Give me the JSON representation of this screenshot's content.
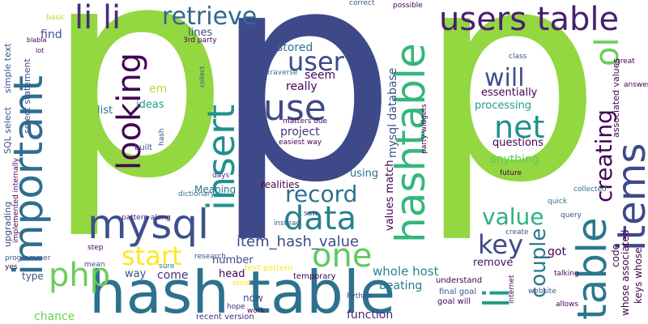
{
  "words": [
    {
      "text": "p",
      "color": "#93d741",
      "weight": "xl"
    },
    {
      "text": "p",
      "color": "#3e4989",
      "weight": "xl"
    },
    {
      "text": "p",
      "color": "#93d741",
      "weight": "xl"
    },
    {
      "text": "hash table",
      "color": "#2c728e",
      "weight": "l"
    },
    {
      "text": "hashtable",
      "color": "#35b779",
      "weight": "l"
    },
    {
      "text": "users table",
      "color": "#481f70",
      "weight": "l"
    },
    {
      "text": "table",
      "color": "#2a788e",
      "weight": "l"
    },
    {
      "text": "items",
      "color": "#3e4989",
      "weight": "l"
    },
    {
      "text": "important",
      "color": "#2e6e8e",
      "weight": "l"
    },
    {
      "text": "li li",
      "color": "#472d7b",
      "weight": "l"
    },
    {
      "text": "retrieve",
      "color": "#31688e",
      "weight": "m"
    },
    {
      "text": "mysql",
      "color": "#3b528b",
      "weight": "m"
    },
    {
      "text": "php",
      "color": "#6ccd5a",
      "weight": "m"
    },
    {
      "text": "insert",
      "color": "#21918c",
      "weight": "m"
    },
    {
      "text": "use",
      "color": "#3e4989",
      "weight": "m"
    },
    {
      "text": "data",
      "color": "#26828e",
      "weight": "m"
    },
    {
      "text": "one",
      "color": "#5ec962",
      "weight": "m"
    },
    {
      "text": "record",
      "color": "#2c728e",
      "weight": "m"
    },
    {
      "text": "user",
      "color": "#3e4989",
      "weight": "m"
    },
    {
      "text": "looking",
      "color": "#440154",
      "weight": "m"
    },
    {
      "text": "start",
      "color": "#fde725",
      "weight": "m"
    },
    {
      "text": "net",
      "color": "#21918c",
      "weight": "m"
    },
    {
      "text": "will",
      "color": "#3b528b",
      "weight": "m"
    },
    {
      "text": "li",
      "color": "#1f9e89",
      "weight": "m"
    },
    {
      "text": "key",
      "color": "#3e4989",
      "weight": "m"
    },
    {
      "text": "value",
      "color": "#2db27d",
      "weight": "m"
    },
    {
      "text": "couple",
      "color": "#2a788e",
      "weight": "m"
    },
    {
      "text": "creating",
      "color": "#440154",
      "weight": "m"
    },
    {
      "text": "ol",
      "color": "#6ccd5a",
      "weight": "m"
    },
    {
      "text": "item_hash_value",
      "color": "#3e4989",
      "weight": "s"
    },
    {
      "text": "whole host",
      "color": "#26828e",
      "weight": "s"
    },
    {
      "text": "function",
      "color": "#482475",
      "weight": "s"
    },
    {
      "text": "stored",
      "color": "#2c728e",
      "weight": "s"
    },
    {
      "text": "seem",
      "color": "#440154",
      "weight": "s"
    },
    {
      "text": "really",
      "color": "#440154",
      "weight": "s"
    },
    {
      "text": "project",
      "color": "#46337e",
      "weight": "s"
    },
    {
      "text": "questions",
      "color": "#440154",
      "weight": "s"
    },
    {
      "text": "anything",
      "color": "#5ec962",
      "weight": "s"
    },
    {
      "text": "processing",
      "color": "#1f9e89",
      "weight": "s"
    },
    {
      "text": "essentially",
      "color": "#440154",
      "weight": "s"
    },
    {
      "text": "ideas",
      "color": "#1f9e89",
      "weight": "s"
    },
    {
      "text": "list",
      "color": "#2c728e",
      "weight": "s"
    },
    {
      "text": "em",
      "color": "#b5de2b",
      "weight": "s"
    },
    {
      "text": "find",
      "color": "#3b528b",
      "weight": "s"
    },
    {
      "text": "type",
      "color": "#3b528b",
      "weight": "s"
    },
    {
      "text": "lines",
      "color": "#3b528b",
      "weight": "s"
    },
    {
      "text": "Meaning",
      "color": "#2c728e",
      "weight": "s"
    },
    {
      "text": "realities",
      "color": "#440154",
      "weight": "s"
    },
    {
      "text": "using",
      "color": "#2c728e",
      "weight": "s"
    },
    {
      "text": "number",
      "color": "#3e4989",
      "weight": "s"
    },
    {
      "text": "beating",
      "color": "#2a788e",
      "weight": "s"
    },
    {
      "text": "remove",
      "color": "#471164",
      "weight": "s"
    },
    {
      "text": "got",
      "color": "#440154",
      "weight": "s"
    },
    {
      "text": "chance",
      "color": "#6ccd5a",
      "weight": "s"
    },
    {
      "text": "way",
      "color": "#3b528b",
      "weight": "s"
    },
    {
      "text": "come",
      "color": "#46337e",
      "weight": "s"
    },
    {
      "text": "head",
      "color": "#440154",
      "weight": "s"
    },
    {
      "text": "now",
      "color": "#3e4989",
      "weight": "s"
    },
    {
      "text": "understand",
      "color": "#440154",
      "weight": "xs"
    },
    {
      "text": "final goal",
      "color": "#3b528b",
      "weight": "xs"
    },
    {
      "text": "goal will",
      "color": "#440154",
      "weight": "xs"
    },
    {
      "text": "text pattern",
      "color": "#fde725",
      "weight": "xs"
    },
    {
      "text": "recent version",
      "color": "#472d7b",
      "weight": "xs"
    },
    {
      "text": "temporary",
      "color": "#440154",
      "weight": "xs"
    },
    {
      "text": "instead",
      "color": "#3b528b",
      "weight": "xs"
    },
    {
      "text": "saw",
      "color": "#3e4989",
      "weight": "xs"
    },
    {
      "text": "matters due",
      "color": "#440154",
      "weight": "xs"
    },
    {
      "text": "easiest way",
      "color": "#440154",
      "weight": "xs"
    },
    {
      "text": "traverse",
      "color": "#2c728e",
      "weight": "xs"
    },
    {
      "text": "built",
      "color": "#3b528b",
      "weight": "xs"
    },
    {
      "text": "days",
      "color": "#46337e",
      "weight": "xs"
    },
    {
      "text": "dictionary",
      "color": "#2c728e",
      "weight": "xs"
    },
    {
      "text": "pattern along",
      "color": "#482475",
      "weight": "xs"
    },
    {
      "text": "step",
      "color": "#440154",
      "weight": "xs"
    },
    {
      "text": "mean",
      "color": "#3b528b",
      "weight": "xs"
    },
    {
      "text": "sure",
      "color": "#2a788e",
      "weight": "xs"
    },
    {
      "text": "research",
      "color": "#3b528b",
      "weight": "xs"
    },
    {
      "text": "store",
      "color": "#fde725",
      "weight": "xs"
    },
    {
      "text": "hope",
      "color": "#482475",
      "weight": "xs"
    },
    {
      "text": "work",
      "color": "#440154",
      "weight": "xs"
    },
    {
      "text": "Python",
      "color": "#3b528b",
      "weight": "xs"
    },
    {
      "text": "programmer",
      "color": "#3b528b",
      "weight": "xs"
    },
    {
      "text": "yes",
      "color": "#440154",
      "weight": "xs"
    },
    {
      "text": "3rd party",
      "color": "#440154",
      "weight": "xs"
    },
    {
      "text": "collected",
      "color": "#2c728e",
      "weight": "xs"
    },
    {
      "text": "quick",
      "color": "#2c728e",
      "weight": "xs"
    },
    {
      "text": "create",
      "color": "#3b528b",
      "weight": "xs"
    },
    {
      "text": "future",
      "color": "#440154",
      "weight": "xs"
    },
    {
      "text": "great",
      "color": "#440154",
      "weight": "xs"
    },
    {
      "text": "answers",
      "color": "#440154",
      "weight": "xs"
    },
    {
      "text": "query",
      "color": "#3b528b",
      "weight": "xs"
    },
    {
      "text": "talking",
      "color": "#440154",
      "weight": "xs"
    },
    {
      "text": "website",
      "color": "#3b528b",
      "weight": "xs"
    },
    {
      "text": "allows",
      "color": "#440154",
      "weight": "xs"
    },
    {
      "text": "class",
      "color": "#3b528b",
      "weight": "xs"
    },
    {
      "text": "correct",
      "color": "#3b528b",
      "weight": "xs"
    },
    {
      "text": "possible",
      "color": "#440154",
      "weight": "xs"
    },
    {
      "text": "basic",
      "color": "#b5de2b",
      "weight": "xs"
    },
    {
      "text": "blabla",
      "color": "#440154",
      "weight": "xs"
    },
    {
      "text": "lot",
      "color": "#440154",
      "weight": "xs"
    },
    {
      "text": "mysql database",
      "color": "#3b528b",
      "weight": "s"
    },
    {
      "text": "values match",
      "color": "#440154",
      "weight": "s"
    },
    {
      "text": "simple text",
      "color": "#3b528b",
      "weight": "s"
    },
    {
      "text": "select statement",
      "color": "#3b528b",
      "weight": "s"
    },
    {
      "text": "SQL select",
      "color": "#3b528b",
      "weight": "s"
    },
    {
      "text": "upgrading",
      "color": "#3e4989",
      "weight": "s"
    },
    {
      "text": "implemented internally",
      "color": "#440154",
      "weight": "xs"
    },
    {
      "text": "party widgets",
      "color": "#440154",
      "weight": "xs"
    },
    {
      "text": "associated values",
      "color": "#440154",
      "weight": "xs"
    },
    {
      "text": "whose associated",
      "color": "#440154",
      "weight": "s"
    },
    {
      "text": "keys whose",
      "color": "#440154",
      "weight": "s"
    },
    {
      "text": "code",
      "color": "#440154",
      "weight": "s"
    },
    {
      "text": "internet",
      "color": "#440154",
      "weight": "xs"
    },
    {
      "text": "hash",
      "color": "#3b528b",
      "weight": "xs"
    },
    {
      "text": "collect",
      "color": "#3b528b",
      "weight": "xs"
    }
  ]
}
